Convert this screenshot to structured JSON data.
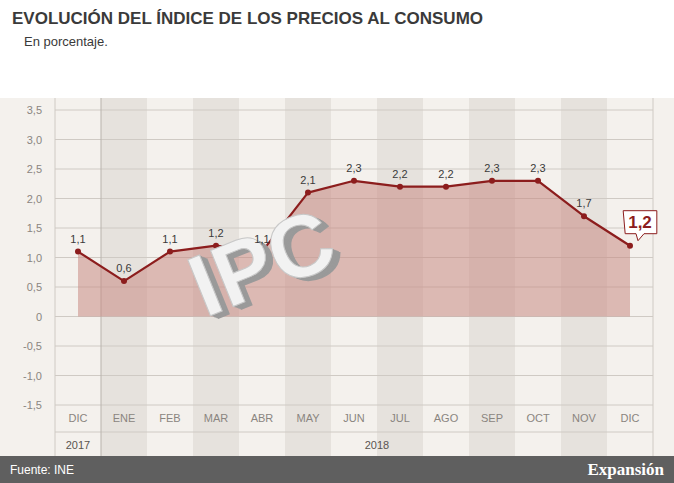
{
  "chart_data": {
    "type": "area",
    "title": "EVOLUCIÓN DEL ÍNDICE DE LOS PRECIOS AL CONSUMO",
    "subtitle": "En porcentaje.",
    "categories": [
      "DIC",
      "ENE",
      "FEB",
      "MAR",
      "ABR",
      "MAY",
      "JUN",
      "JUL",
      "AGO",
      "SEP",
      "OCT",
      "NOV",
      "DIC"
    ],
    "category_groups": [
      {
        "label": "2017",
        "count": 1
      },
      {
        "label": "2018",
        "count": 12
      }
    ],
    "values": [
      1.1,
      0.6,
      1.1,
      1.2,
      1.1,
      2.1,
      2.3,
      2.2,
      2.2,
      2.3,
      2.3,
      1.7,
      1.2
    ],
    "value_labels": [
      "1,1",
      "0,6",
      "1,1",
      "1,2",
      "1,1",
      "2,1",
      "2,3",
      "2,2",
      "2,2",
      "2,3",
      "2,3",
      "1,7",
      "1,2"
    ],
    "color": "#8c1d1d",
    "ylim": [
      -1.5,
      3.5
    ],
    "yticks": [
      {
        "value": -1.5,
        "label": "-1,5"
      },
      {
        "value": -1,
        "label": "-1,0"
      },
      {
        "value": -0.5,
        "label": "-0,5"
      },
      0,
      {
        "value": 0.5,
        "label": "0,5"
      },
      {
        "value": 1,
        "label": "1,0"
      },
      {
        "value": 1.5,
        "label": "1,5"
      },
      {
        "value": 2,
        "label": "2,0"
      },
      {
        "value": 2.5,
        "label": "2,5"
      },
      {
        "value": 3,
        "label": "3,0"
      },
      {
        "value": 3.5,
        "label": "3,5"
      }
    ],
    "grid": true,
    "data_labels": true,
    "marker": "circle",
    "annotations": [
      {
        "text": "IPC"
      }
    ]
  },
  "footer": {
    "source": "Fuente: INE",
    "brand": "Expansión"
  }
}
